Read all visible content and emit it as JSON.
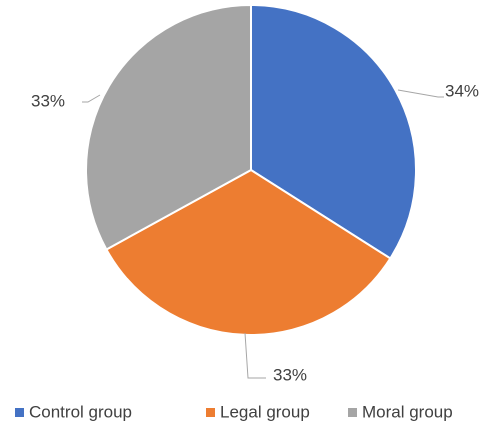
{
  "chart_data": {
    "type": "pie",
    "categories": [
      "Control group",
      "Legal group",
      "Moral group"
    ],
    "values": [
      34,
      33,
      33
    ],
    "value_labels": [
      "34%",
      "33%",
      "33%"
    ],
    "colors": [
      "#4472c4",
      "#ed7d31",
      "#a5a5a5"
    ],
    "legend": "bottom"
  }
}
